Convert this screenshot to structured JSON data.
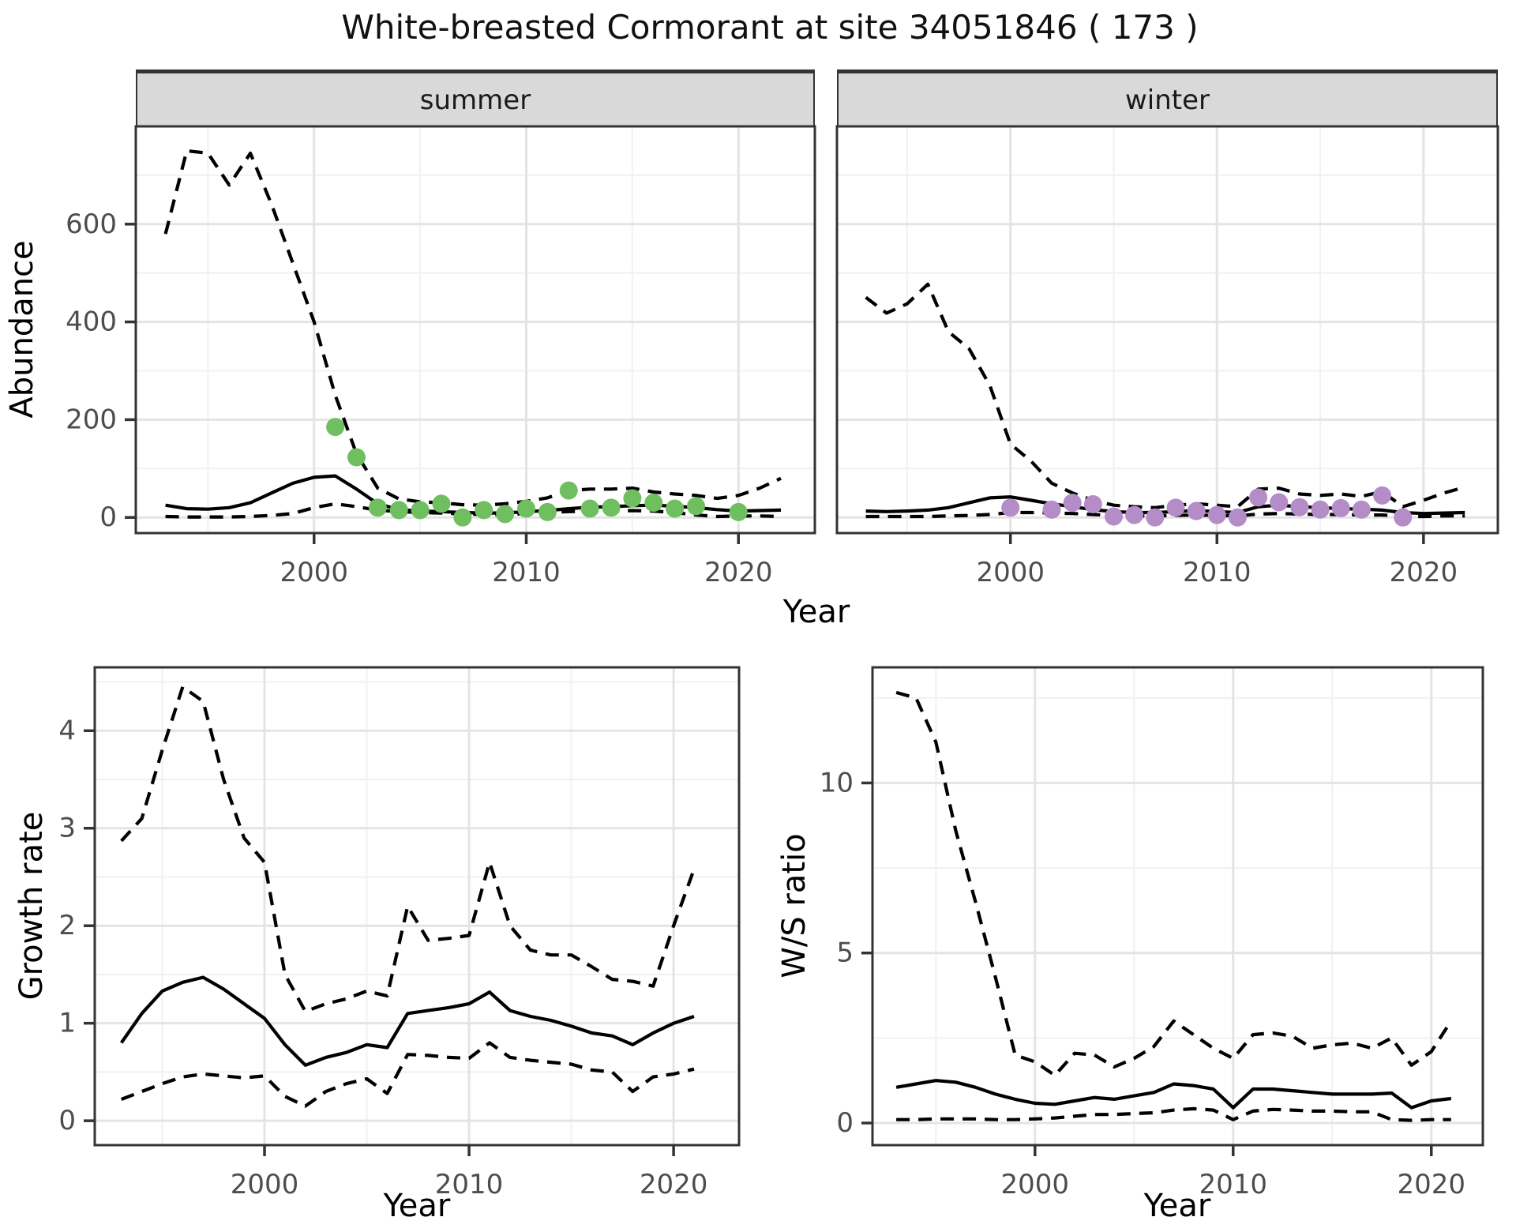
{
  "title": "White-breasted Cormorant at site 34051846 ( 173 )",
  "facets": {
    "summer": "summer",
    "winter": "winter"
  },
  "axis_titles": {
    "abundance": "Abundance",
    "year_top": "Year",
    "growth": "Growth rate",
    "ws": "W/S ratio",
    "year_growth": "Year",
    "year_ws": "Year"
  },
  "colors": {
    "summer_points": "#6FBE5F",
    "winter_points": "#B48CC8",
    "line": "#000000",
    "grid_major": "#E4E4E4",
    "grid_minor": "#F1F1F1",
    "panel_border": "#333333",
    "tick_mark": "#333333",
    "tick_text": "#4D4D4D",
    "strip_bg": "#D9D9D9"
  },
  "chart_data": [
    {
      "id": "abundance-summer",
      "type": "line",
      "facet": "summer",
      "ylabel": "Abundance",
      "xlabel": "Year",
      "xlim": [
        1991.6,
        2023.6
      ],
      "ylim": [
        -32,
        800
      ],
      "xticks": {
        "major": [
          2000,
          2010,
          2020
        ],
        "minor": [
          1995,
          2005,
          2015
        ],
        "labels": [
          "2000",
          "2010",
          "2020"
        ]
      },
      "yticks": {
        "major": [
          0,
          200,
          400,
          600
        ],
        "minor": [
          100,
          300,
          500,
          700
        ],
        "labels": [
          "0",
          "200",
          "400",
          "600"
        ]
      },
      "series": [
        {
          "name": "upper_ci",
          "style": "dashed",
          "x0": 1993,
          "y": [
            580,
            750,
            745,
            680,
            745,
            640,
            520,
            400,
            250,
            130,
            60,
            38,
            32,
            30,
            26,
            25,
            28,
            33,
            40,
            55,
            58,
            58,
            60,
            52,
            48,
            45,
            39,
            45,
            60,
            80
          ]
        },
        {
          "name": "mean",
          "style": "solid",
          "x0": 1993,
          "y": [
            25,
            18,
            17,
            20,
            30,
            50,
            70,
            82,
            85,
            58,
            28,
            16,
            13,
            12,
            10,
            9,
            9,
            12,
            14,
            18,
            21,
            22,
            24,
            25,
            23,
            20,
            16,
            13,
            14,
            15
          ]
        },
        {
          "name": "lower_ci",
          "style": "dashed",
          "x0": 1993,
          "y": [
            2,
            1,
            1,
            1,
            2,
            4,
            8,
            20,
            28,
            22,
            15,
            12,
            10,
            9,
            7,
            6,
            6,
            8,
            10,
            12,
            13,
            13,
            14,
            13,
            10,
            5,
            2,
            3,
            3,
            2
          ]
        }
      ],
      "points": {
        "name": "summer-observations",
        "color_key": "summer_points",
        "x": [
          2001,
          2002,
          2003,
          2004,
          2005,
          2006,
          2007,
          2008,
          2009,
          2010,
          2011,
          2012,
          2013,
          2014,
          2015,
          2016,
          2017,
          2018,
          2020
        ],
        "y": [
          185,
          123,
          20,
          15,
          15,
          28,
          0,
          15,
          7,
          18,
          11,
          55,
          18,
          20,
          39,
          30,
          18,
          23,
          11
        ]
      }
    },
    {
      "id": "abundance-winter",
      "type": "line",
      "facet": "winter",
      "ylabel": "Abundance",
      "xlabel": "Year",
      "xlim": [
        1991.6,
        2023.6
      ],
      "ylim": [
        -32,
        800
      ],
      "xticks": {
        "major": [
          2000,
          2010,
          2020
        ],
        "minor": [
          1995,
          2005,
          2015
        ],
        "labels": [
          "2000",
          "2010",
          "2020"
        ]
      },
      "yticks": {
        "major": [
          0,
          200,
          400,
          600
        ],
        "minor": [
          100,
          300,
          500,
          700
        ],
        "labels": [
          "0",
          "200",
          "400",
          "600"
        ]
      },
      "series": [
        {
          "name": "upper_ci",
          "style": "dashed",
          "x0": 1993,
          "y": [
            450,
            418,
            437,
            477,
            380,
            345,
            270,
            150,
            115,
            70,
            50,
            35,
            25,
            22,
            20,
            25,
            28,
            25,
            22,
            58,
            60,
            48,
            45,
            48,
            43,
            53,
            22,
            35,
            50,
            62
          ]
        },
        {
          "name": "mean",
          "style": "solid",
          "x0": 1993,
          "y": [
            13,
            12,
            13,
            15,
            20,
            30,
            40,
            42,
            35,
            28,
            22,
            16,
            12,
            10,
            10,
            12,
            14,
            12,
            10,
            22,
            25,
            22,
            20,
            18,
            17,
            15,
            10,
            8,
            9,
            10
          ]
        },
        {
          "name": "lower_ci",
          "style": "dashed",
          "x0": 1993,
          "y": [
            2,
            2,
            2,
            2,
            3,
            4,
            6,
            10,
            10,
            9,
            8,
            6,
            4,
            3,
            3,
            4,
            5,
            4,
            3,
            7,
            8,
            7,
            6,
            6,
            5,
            5,
            2,
            2,
            3,
            3
          ]
        }
      ],
      "points": {
        "name": "winter-observations",
        "color_key": "winter_points",
        "x": [
          2000,
          2002,
          2003,
          2004,
          2005,
          2006,
          2007,
          2008,
          2009,
          2010,
          2011,
          2012,
          2013,
          2014,
          2015,
          2016,
          2017,
          2018,
          2019
        ],
        "y": [
          20,
          16,
          30,
          27,
          2,
          5,
          0,
          20,
          13,
          5,
          0,
          41,
          31,
          21,
          16,
          19,
          16,
          45,
          0
        ]
      }
    },
    {
      "id": "growth-rate",
      "type": "line",
      "ylabel": "Growth rate",
      "xlabel": "Year",
      "xlim": [
        1991.7,
        2023.2
      ],
      "ylim": [
        -0.25,
        4.65
      ],
      "xticks": {
        "major": [
          2000,
          2010,
          2020
        ],
        "minor": [
          1995,
          2005,
          2015
        ],
        "labels": [
          "2000",
          "2010",
          "2020"
        ]
      },
      "yticks": {
        "major": [
          0,
          1,
          2,
          3,
          4
        ],
        "minor": [
          0.5,
          1.5,
          2.5,
          3.5,
          4.5
        ],
        "labels": [
          "0",
          "1",
          "2",
          "3",
          "4"
        ]
      },
      "series": [
        {
          "name": "upper_ci",
          "style": "dashed",
          "x0": 1993,
          "y": [
            2.87,
            3.1,
            3.8,
            4.45,
            4.3,
            3.5,
            2.9,
            2.65,
            1.5,
            1.12,
            1.2,
            1.25,
            1.33,
            1.28,
            2.2,
            1.85,
            1.87,
            1.9,
            2.65,
            2.0,
            1.75,
            1.7,
            1.7,
            1.58,
            1.45,
            1.43,
            1.38,
            2.0,
            2.58
          ]
        },
        {
          "name": "mean",
          "style": "solid",
          "x0": 1993,
          "y": [
            0.8,
            1.1,
            1.33,
            1.42,
            1.47,
            1.35,
            1.2,
            1.05,
            0.78,
            0.57,
            0.65,
            0.7,
            0.78,
            0.75,
            1.1,
            1.13,
            1.16,
            1.2,
            1.32,
            1.13,
            1.07,
            1.03,
            0.97,
            0.9,
            0.87,
            0.78,
            0.9,
            1.0,
            1.07
          ]
        },
        {
          "name": "lower_ci",
          "style": "dashed",
          "x0": 1993,
          "y": [
            0.22,
            0.3,
            0.38,
            0.45,
            0.48,
            0.46,
            0.44,
            0.46,
            0.25,
            0.15,
            0.3,
            0.38,
            0.43,
            0.28,
            0.68,
            0.67,
            0.65,
            0.64,
            0.8,
            0.65,
            0.62,
            0.6,
            0.58,
            0.52,
            0.5,
            0.3,
            0.45,
            0.48,
            0.53
          ]
        }
      ]
    },
    {
      "id": "ws-ratio",
      "type": "line",
      "ylabel": "W/S ratio",
      "xlabel": "Year",
      "xlim": [
        1991.8,
        2022.6
      ],
      "ylim": [
        -0.65,
        13.4
      ],
      "xticks": {
        "major": [
          2000,
          2010,
          2020
        ],
        "minor": [
          1995,
          2005,
          2015
        ],
        "labels": [
          "2000",
          "2010",
          "2020"
        ]
      },
      "yticks": {
        "major": [
          0,
          5,
          10
        ],
        "minor": [
          2.5,
          7.5,
          12.5
        ],
        "labels": [
          "0",
          "5",
          "10"
        ]
      },
      "series": [
        {
          "name": "upper_ci",
          "style": "dashed",
          "x0": 1993,
          "y": [
            12.66,
            12.5,
            11.2,
            8.6,
            6.5,
            4.3,
            2.0,
            1.8,
            1.4,
            2.05,
            2.0,
            1.65,
            1.9,
            2.25,
            3.0,
            2.6,
            2.2,
            1.9,
            2.6,
            2.65,
            2.55,
            2.2,
            2.3,
            2.35,
            2.2,
            2.5,
            1.7,
            2.1,
            3.0
          ]
        },
        {
          "name": "mean",
          "style": "solid",
          "x0": 1993,
          "y": [
            1.05,
            1.15,
            1.25,
            1.2,
            1.05,
            0.85,
            0.7,
            0.58,
            0.55,
            0.65,
            0.75,
            0.7,
            0.8,
            0.9,
            1.15,
            1.1,
            1.0,
            0.45,
            1.0,
            1.0,
            0.95,
            0.9,
            0.85,
            0.85,
            0.85,
            0.88,
            0.45,
            0.65,
            0.72
          ]
        },
        {
          "name": "lower_ci",
          "style": "dashed",
          "x0": 1993,
          "y": [
            0.1,
            0.1,
            0.12,
            0.12,
            0.12,
            0.1,
            0.1,
            0.12,
            0.15,
            0.2,
            0.25,
            0.25,
            0.28,
            0.3,
            0.38,
            0.42,
            0.38,
            0.1,
            0.35,
            0.4,
            0.38,
            0.35,
            0.35,
            0.33,
            0.33,
            0.1,
            0.08,
            0.1,
            0.1
          ]
        }
      ]
    }
  ]
}
